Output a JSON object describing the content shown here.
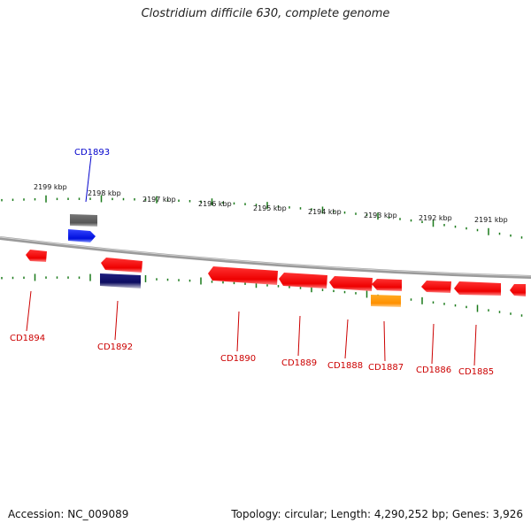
{
  "title": "Clostridium difficile 630, complete genome",
  "footer": {
    "accession": "Accession: NC_009089",
    "topology": "Topology: circular; Length: 4,290,252 bp; Genes: 3,926"
  },
  "scale_labels": [
    "2199 kbp",
    "2198 kbp",
    "2197 kbp",
    "2196 kbp",
    "2195 kbp",
    "2194 kbp",
    "2193 kbp",
    "2192 kbp",
    "2191 kbp"
  ],
  "gene_labels": [
    {
      "name": "CD1893",
      "strand": "forward",
      "color": "#0000cc"
    },
    {
      "name": "CD1894",
      "strand": "reverse",
      "color": "#cc0000"
    },
    {
      "name": "CD1892",
      "strand": "reverse",
      "color": "#cc0000"
    },
    {
      "name": "CD1890",
      "strand": "reverse",
      "color": "#cc0000"
    },
    {
      "name": "CD1889",
      "strand": "reverse",
      "color": "#cc0000"
    },
    {
      "name": "CD1888",
      "strand": "reverse",
      "color": "#cc0000"
    },
    {
      "name": "CD1887",
      "strand": "reverse",
      "color": "#cc0000"
    },
    {
      "name": "CD1886",
      "strand": "reverse",
      "color": "#cc0000"
    },
    {
      "name": "CD1885",
      "strand": "reverse",
      "color": "#cc0000"
    }
  ],
  "colors": {
    "backbone": "#888888",
    "tick": "#1a7a1a",
    "reverse_gene": "#ee1111",
    "forward_gene": "#1122ee",
    "dark_feature": "#555555",
    "navy_feature": "#101070",
    "orange_feature": "#ff9900"
  }
}
